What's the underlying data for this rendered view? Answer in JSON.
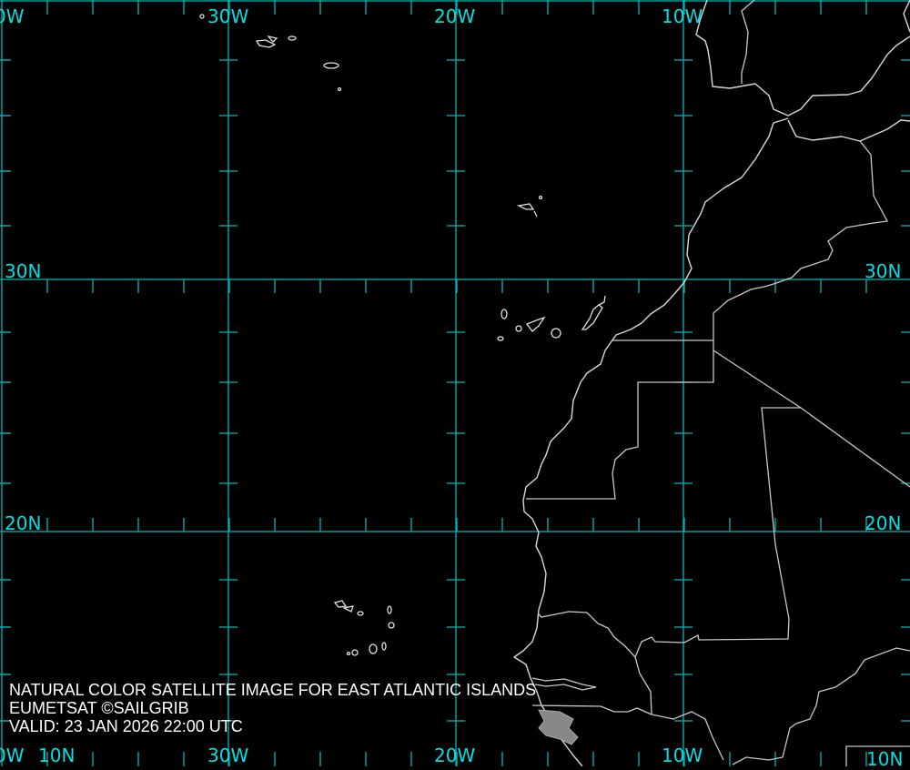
{
  "map": {
    "grid_color": "#00b8b8",
    "label_color": "#00e0e0",
    "coastline_color": "#d8d8d8",
    "top_labels": [
      "0W",
      "30W",
      "20W",
      "10W"
    ],
    "bottom_labels": [
      "0W",
      "30W",
      "20W",
      "10W"
    ],
    "left_labels": [
      "30N",
      "20N",
      "10N"
    ],
    "right_labels": [
      "30N",
      "20N",
      "10N"
    ]
  },
  "caption": {
    "line1": "NATURAL COLOR SATELLITE IMAGE FOR EAST ATLANTIC ISLANDS",
    "line2": "EUMETSAT ©SAILGRIB",
    "line3": "VALID:  23 JAN 2026 22:00 UTC"
  }
}
